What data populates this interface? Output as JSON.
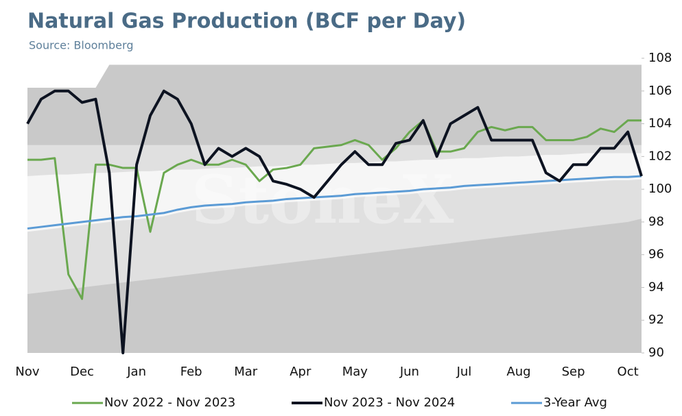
{
  "chart_data": {
    "type": "line",
    "title": "Natural Gas Production (BCF per Day)",
    "subtitle": "Source: Bloomberg",
    "watermark": "StoneX",
    "categories": [
      "Nov",
      null,
      null,
      null,
      "Dec",
      null,
      null,
      null,
      "Jan",
      null,
      null,
      null,
      "Feb",
      null,
      null,
      null,
      "Mar",
      null,
      null,
      null,
      "Apr",
      null,
      null,
      null,
      "May",
      null,
      null,
      null,
      "Jun",
      null,
      null,
      null,
      "Jul",
      null,
      null,
      null,
      "Aug",
      null,
      null,
      null,
      "Sep",
      null,
      null,
      null,
      "Oct",
      null
    ],
    "ylim": [
      90,
      108
    ],
    "yticks": [
      90,
      92,
      94,
      96,
      98,
      100,
      102,
      104,
      106,
      108
    ],
    "legend": "bottom",
    "bands": [
      {
        "color": "#c9c9c9",
        "lower": [
          90,
          90,
          90,
          90,
          90,
          90,
          90,
          90,
          90,
          90,
          90,
          90,
          90,
          90,
          90,
          90,
          90,
          90,
          90,
          90,
          90,
          90,
          90,
          90,
          90,
          90,
          90,
          90,
          90,
          90,
          90,
          90,
          90,
          90,
          90,
          90,
          90,
          90,
          90,
          90,
          90,
          90,
          90,
          90,
          90,
          90
        ],
        "upper": [
          106.2,
          106.2,
          106.2,
          106.2,
          106.2,
          106.2,
          107.6,
          107.6,
          107.6,
          107.6,
          107.6,
          107.6,
          107.6,
          107.6,
          107.6,
          107.6,
          107.6,
          107.6,
          107.6,
          107.6,
          107.6,
          107.6,
          107.6,
          107.6,
          107.6,
          107.6,
          107.6,
          107.6,
          107.6,
          107.6,
          107.6,
          107.6,
          107.6,
          107.6,
          107.6,
          107.6,
          107.6,
          107.6,
          107.6,
          107.6,
          107.6,
          107.6,
          107.6,
          107.6,
          107.6,
          107.6
        ]
      },
      {
        "color": "#e0e0e0",
        "lower": [
          93.6,
          93.7,
          93.8,
          93.9,
          94.0,
          94.1,
          94.2,
          94.3,
          94.4,
          94.5,
          94.6,
          94.7,
          94.8,
          94.9,
          95.0,
          95.1,
          95.2,
          95.3,
          95.4,
          95.5,
          95.6,
          95.7,
          95.8,
          95.9,
          96.0,
          96.1,
          96.2,
          96.3,
          96.4,
          96.5,
          96.6,
          96.7,
          96.8,
          96.9,
          97.0,
          97.1,
          97.2,
          97.3,
          97.4,
          97.5,
          97.6,
          97.7,
          97.8,
          97.9,
          98.0,
          98.2
        ],
        "upper": [
          102.7,
          102.7,
          102.7,
          102.7,
          102.7,
          102.7,
          102.7,
          102.7,
          102.7,
          102.7,
          102.7,
          102.7,
          102.7,
          102.7,
          102.7,
          102.7,
          102.7,
          102.7,
          102.7,
          102.7,
          102.7,
          102.7,
          102.7,
          102.7,
          102.7,
          102.7,
          102.7,
          102.7,
          102.7,
          102.7,
          102.7,
          102.7,
          102.7,
          102.7,
          102.7,
          102.7,
          102.7,
          102.7,
          102.7,
          102.7,
          102.7,
          102.7,
          102.7,
          102.7,
          102.7,
          102.7
        ]
      },
      {
        "color": "#f6f6f6",
        "lower": [
          97.4,
          97.5,
          97.6,
          97.7,
          97.8,
          97.9,
          98.0,
          98.1,
          98.15,
          98.25,
          98.35,
          98.55,
          98.7,
          98.8,
          98.85,
          98.9,
          99.0,
          99.05,
          99.1,
          99.2,
          99.25,
          99.3,
          99.35,
          99.4,
          99.5,
          99.55,
          99.6,
          99.65,
          99.7,
          99.8,
          99.85,
          99.9,
          100.0,
          100.05,
          100.1,
          100.15,
          100.2,
          100.25,
          100.3,
          100.35,
          100.4,
          100.45,
          100.5,
          100.55,
          100.55,
          100.6
        ],
        "upper": [
          100.8,
          100.85,
          100.9,
          100.9,
          100.95,
          101.0,
          101.0,
          101.05,
          101.1,
          101.1,
          101.15,
          101.2,
          101.2,
          101.25,
          101.3,
          101.3,
          101.35,
          101.4,
          101.4,
          101.45,
          101.5,
          101.5,
          101.55,
          101.6,
          101.6,
          101.65,
          101.7,
          101.7,
          101.75,
          101.8,
          101.8,
          101.85,
          101.9,
          101.9,
          101.95,
          102.0,
          102.0,
          102.05,
          102.1,
          102.1,
          102.15,
          102.2,
          102.2,
          102.2,
          102.2,
          102.2
        ]
      }
    ],
    "series": [
      {
        "name": "Nov 2022 - Nov 2023",
        "color": "#6aa84f",
        "width": 3,
        "values": [
          101.8,
          101.8,
          101.9,
          94.8,
          93.3,
          101.5,
          101.5,
          101.3,
          101.3,
          97.4,
          101,
          101.5,
          101.8,
          101.5,
          101.5,
          101.8,
          101.5,
          100.5,
          101.2,
          101.3,
          101.5,
          102.5,
          102.6,
          102.7,
          103,
          102.7,
          101.8,
          102.5,
          103.5,
          104.2,
          102.3,
          102.3,
          102.5,
          103.5,
          103.8,
          103.6,
          103.8,
          103.8,
          103,
          103,
          103,
          103.2,
          103.7,
          103.5,
          104.2,
          104.2
        ]
      },
      {
        "name": "Nov 2023 - Nov 2024",
        "color": "#0d1321",
        "width": 4,
        "values": [
          104,
          105.5,
          106,
          106,
          105.3,
          105.5,
          101,
          90,
          101.5,
          104.5,
          106,
          105.5,
          104,
          101.5,
          102.5,
          102,
          102.5,
          102,
          100.5,
          100.3,
          100,
          99.5,
          100.5,
          101.5,
          102.3,
          101.5,
          101.5,
          102.8,
          103,
          104.2,
          102,
          104,
          104.5,
          105,
          103,
          103,
          103,
          103,
          101,
          100.5,
          101.5,
          101.5,
          102.5,
          102.5,
          103.5,
          100.8
        ]
      },
      {
        "name": "3-Year Avg",
        "color": "#5b9bd5",
        "width": 3,
        "values": [
          97.6,
          97.7,
          97.8,
          97.9,
          98.0,
          98.1,
          98.2,
          98.3,
          98.35,
          98.45,
          98.55,
          98.75,
          98.9,
          99.0,
          99.05,
          99.1,
          99.2,
          99.25,
          99.3,
          99.4,
          99.45,
          99.5,
          99.55,
          99.6,
          99.7,
          99.75,
          99.8,
          99.85,
          99.9,
          100.0,
          100.05,
          100.1,
          100.2,
          100.25,
          100.3,
          100.35,
          100.4,
          100.45,
          100.5,
          100.55,
          100.6,
          100.65,
          100.7,
          100.75,
          100.75,
          100.8
        ]
      }
    ]
  }
}
